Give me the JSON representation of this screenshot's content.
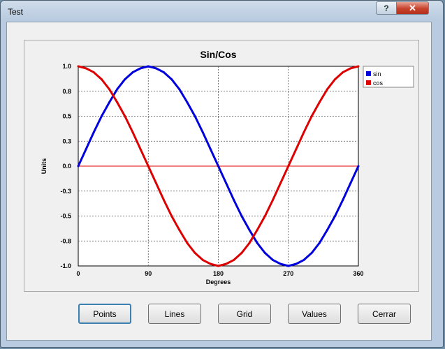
{
  "window": {
    "title": "Test",
    "help_label": "?",
    "close_label": "✕"
  },
  "buttons": {
    "points": "Points",
    "lines": "Lines",
    "grid": "Grid",
    "values": "Values",
    "close": "Cerrar"
  },
  "chart_data": {
    "type": "line",
    "title": "Sin/Cos",
    "xlabel": "Degrees",
    "ylabel": "Units",
    "xlim": [
      0,
      360
    ],
    "ylim": [
      -1.0,
      1.0
    ],
    "x_ticks": [
      "0",
      "90",
      "180",
      "270",
      "360"
    ],
    "y_ticks": [
      "1.0",
      "0.8",
      "0.5",
      "0.3",
      "0.0",
      "-0.3",
      "-0.5",
      "-0.8",
      "-1.0"
    ],
    "grid": true,
    "legend_position": "top-right",
    "zero_line_color": "#e00000",
    "series": [
      {
        "name": "sin",
        "color": "#0000dd",
        "x": [
          0,
          10,
          20,
          30,
          40,
          50,
          60,
          70,
          80,
          90,
          100,
          110,
          120,
          130,
          140,
          150,
          160,
          170,
          180,
          190,
          200,
          210,
          220,
          230,
          240,
          250,
          260,
          270,
          280,
          290,
          300,
          310,
          320,
          330,
          340,
          350,
          360
        ],
        "y": [
          0,
          0.17,
          0.34,
          0.5,
          0.64,
          0.77,
          0.87,
          0.94,
          0.98,
          1,
          0.98,
          0.94,
          0.87,
          0.77,
          0.64,
          0.5,
          0.34,
          0.17,
          0,
          -0.17,
          -0.34,
          -0.5,
          -0.64,
          -0.77,
          -0.87,
          -0.94,
          -0.98,
          -1,
          -0.98,
          -0.94,
          -0.87,
          -0.77,
          -0.64,
          -0.5,
          -0.34,
          -0.17,
          0
        ]
      },
      {
        "name": "cos",
        "color": "#dd0000",
        "x": [
          0,
          10,
          20,
          30,
          40,
          50,
          60,
          70,
          80,
          90,
          100,
          110,
          120,
          130,
          140,
          150,
          160,
          170,
          180,
          190,
          200,
          210,
          220,
          230,
          240,
          250,
          260,
          270,
          280,
          290,
          300,
          310,
          320,
          330,
          340,
          350,
          360
        ],
        "y": [
          1,
          0.98,
          0.94,
          0.87,
          0.77,
          0.64,
          0.5,
          0.34,
          0.17,
          0,
          -0.17,
          -0.34,
          -0.5,
          -0.64,
          -0.77,
          -0.87,
          -0.94,
          -0.98,
          -1,
          -0.98,
          -0.94,
          -0.87,
          -0.77,
          -0.64,
          -0.5,
          -0.34,
          -0.17,
          0,
          0.17,
          0.34,
          0.5,
          0.64,
          0.77,
          0.87,
          0.94,
          0.98,
          1
        ]
      }
    ]
  }
}
